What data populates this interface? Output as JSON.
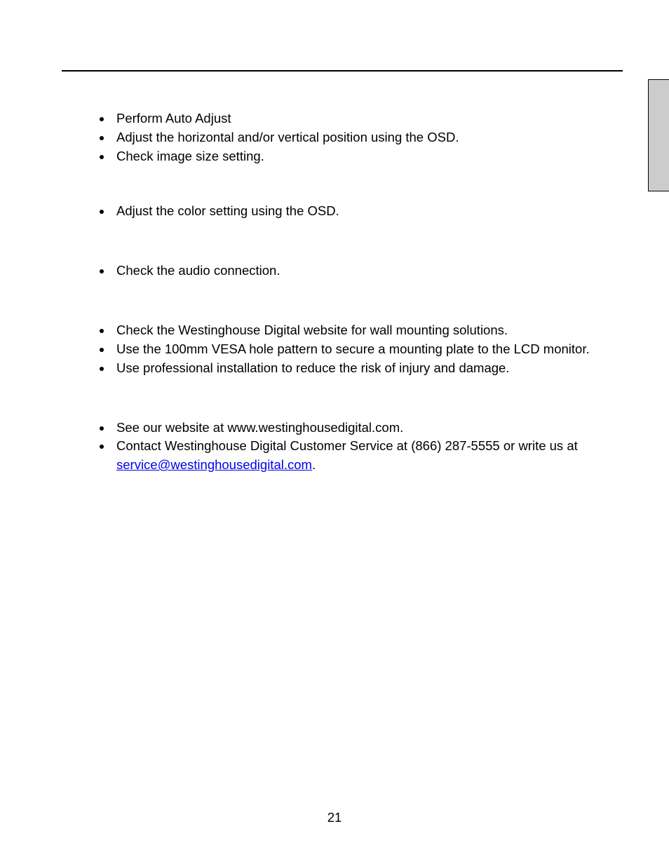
{
  "page": {
    "number": "21",
    "background_color": "#ffffff",
    "text_color": "#000000",
    "link_color": "#0000ee",
    "rule_color": "#000000",
    "tab_color": "#cccccc",
    "font_size_pt": 14
  },
  "sections": [
    {
      "items": [
        "Perform Auto Adjust",
        "Adjust the horizontal and/or vertical position using the OSD.",
        "Check image size setting."
      ]
    },
    {
      "items": [
        "Adjust the color setting using the OSD."
      ]
    },
    {
      "items": [
        "Check the audio connection."
      ]
    },
    {
      "items": [
        "Check the Westinghouse Digital website for wall mounting solutions.",
        "Use the 100mm VESA hole pattern to secure a mounting plate to the LCD monitor.",
        "Use professional installation to reduce the risk of injury and damage."
      ]
    }
  ],
  "support": {
    "website_item": "See our website at www.westinghousedigital.com.",
    "contact_prefix": "Contact Westinghouse Digital Customer Service at (866) 287-5555 or write us at ",
    "email": "service@westinghousedigital.com",
    "contact_suffix": "."
  }
}
